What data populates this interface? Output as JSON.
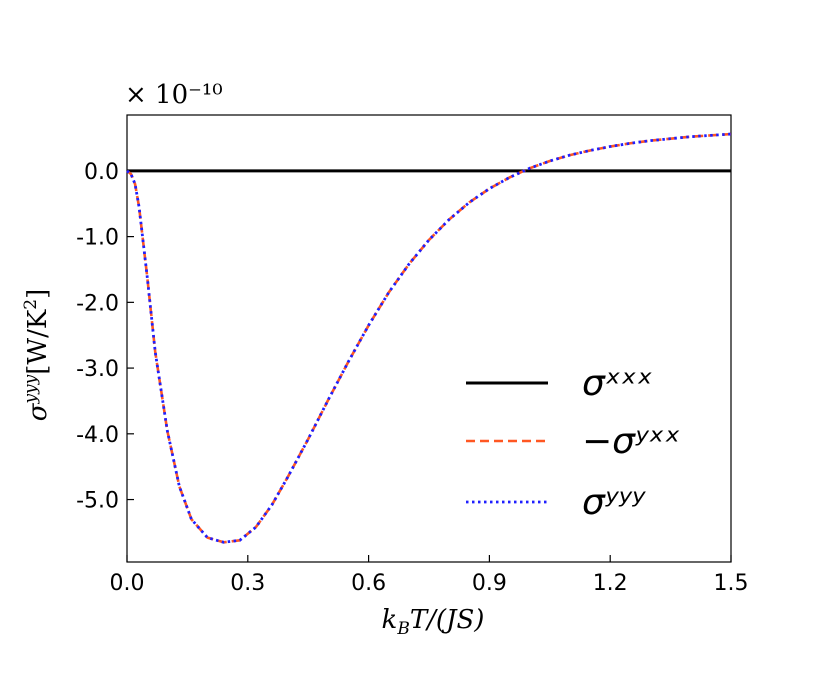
{
  "chart_data": {
    "type": "line",
    "multiplier_label": "× 10⁻¹⁰",
    "xlabel": "k_BT/(JS)",
    "ylabel": "σʸʸʸ[W/K²]",
    "xlim": [
      0.0,
      1.5
    ],
    "ylim": [
      -5.95,
      0.85
    ],
    "xticks": [
      0.0,
      0.3,
      0.6,
      0.9,
      1.2,
      1.5
    ],
    "xtick_labels": [
      "0.0",
      "0.3",
      "0.6",
      "0.9",
      "1.2",
      "1.5"
    ],
    "yticks": [
      0.0,
      -1.0,
      -2.0,
      -3.0,
      -4.0,
      -5.0
    ],
    "ytick_labels": [
      "0.0",
      "-1.0",
      "-2.0",
      "-3.0",
      "-4.0",
      "-5.0"
    ],
    "grid": false,
    "legend_position": "lower-right",
    "x": [
      0.0,
      0.01,
      0.02,
      0.03,
      0.05,
      0.07,
      0.1,
      0.13,
      0.16,
      0.2,
      0.24,
      0.28,
      0.32,
      0.36,
      0.4,
      0.45,
      0.5,
      0.55,
      0.6,
      0.65,
      0.7,
      0.75,
      0.8,
      0.85,
      0.9,
      0.95,
      1.0,
      1.05,
      1.1,
      1.15,
      1.2,
      1.25,
      1.3,
      1.35,
      1.4,
      1.45,
      1.5
    ],
    "series": [
      {
        "name": "σˣˣˣ",
        "color": "#000000",
        "style": "solid",
        "values": [
          0,
          0,
          0,
          0,
          0,
          0,
          0,
          0,
          0,
          0,
          0,
          0,
          0,
          0,
          0,
          0,
          0,
          0,
          0,
          0,
          0,
          0,
          0,
          0,
          0,
          0,
          0,
          0,
          0,
          0,
          0,
          0,
          0,
          0,
          0,
          0,
          0
        ]
      },
      {
        "name": "−σʸˣˣ",
        "color": "#ff5722",
        "style": "dashed",
        "values": [
          0.0,
          -0.05,
          -0.2,
          -0.55,
          -1.6,
          -2.75,
          -3.95,
          -4.8,
          -5.3,
          -5.58,
          -5.65,
          -5.62,
          -5.42,
          -5.08,
          -4.65,
          -4.08,
          -3.48,
          -2.9,
          -2.35,
          -1.85,
          -1.42,
          -1.05,
          -0.74,
          -0.48,
          -0.27,
          -0.1,
          0.04,
          0.15,
          0.24,
          0.31,
          0.37,
          0.42,
          0.46,
          0.49,
          0.52,
          0.54,
          0.56
        ]
      },
      {
        "name": "σʸʸʸ",
        "color": "#1f1fff",
        "style": "dotted",
        "values": [
          0.0,
          -0.05,
          -0.2,
          -0.55,
          -1.6,
          -2.75,
          -3.95,
          -4.8,
          -5.3,
          -5.58,
          -5.65,
          -5.62,
          -5.42,
          -5.08,
          -4.65,
          -4.08,
          -3.48,
          -2.9,
          -2.35,
          -1.85,
          -1.42,
          -1.05,
          -0.74,
          -0.48,
          -0.27,
          -0.1,
          0.04,
          0.15,
          0.24,
          0.31,
          0.37,
          0.42,
          0.46,
          0.49,
          0.52,
          0.54,
          0.56
        ]
      }
    ]
  }
}
